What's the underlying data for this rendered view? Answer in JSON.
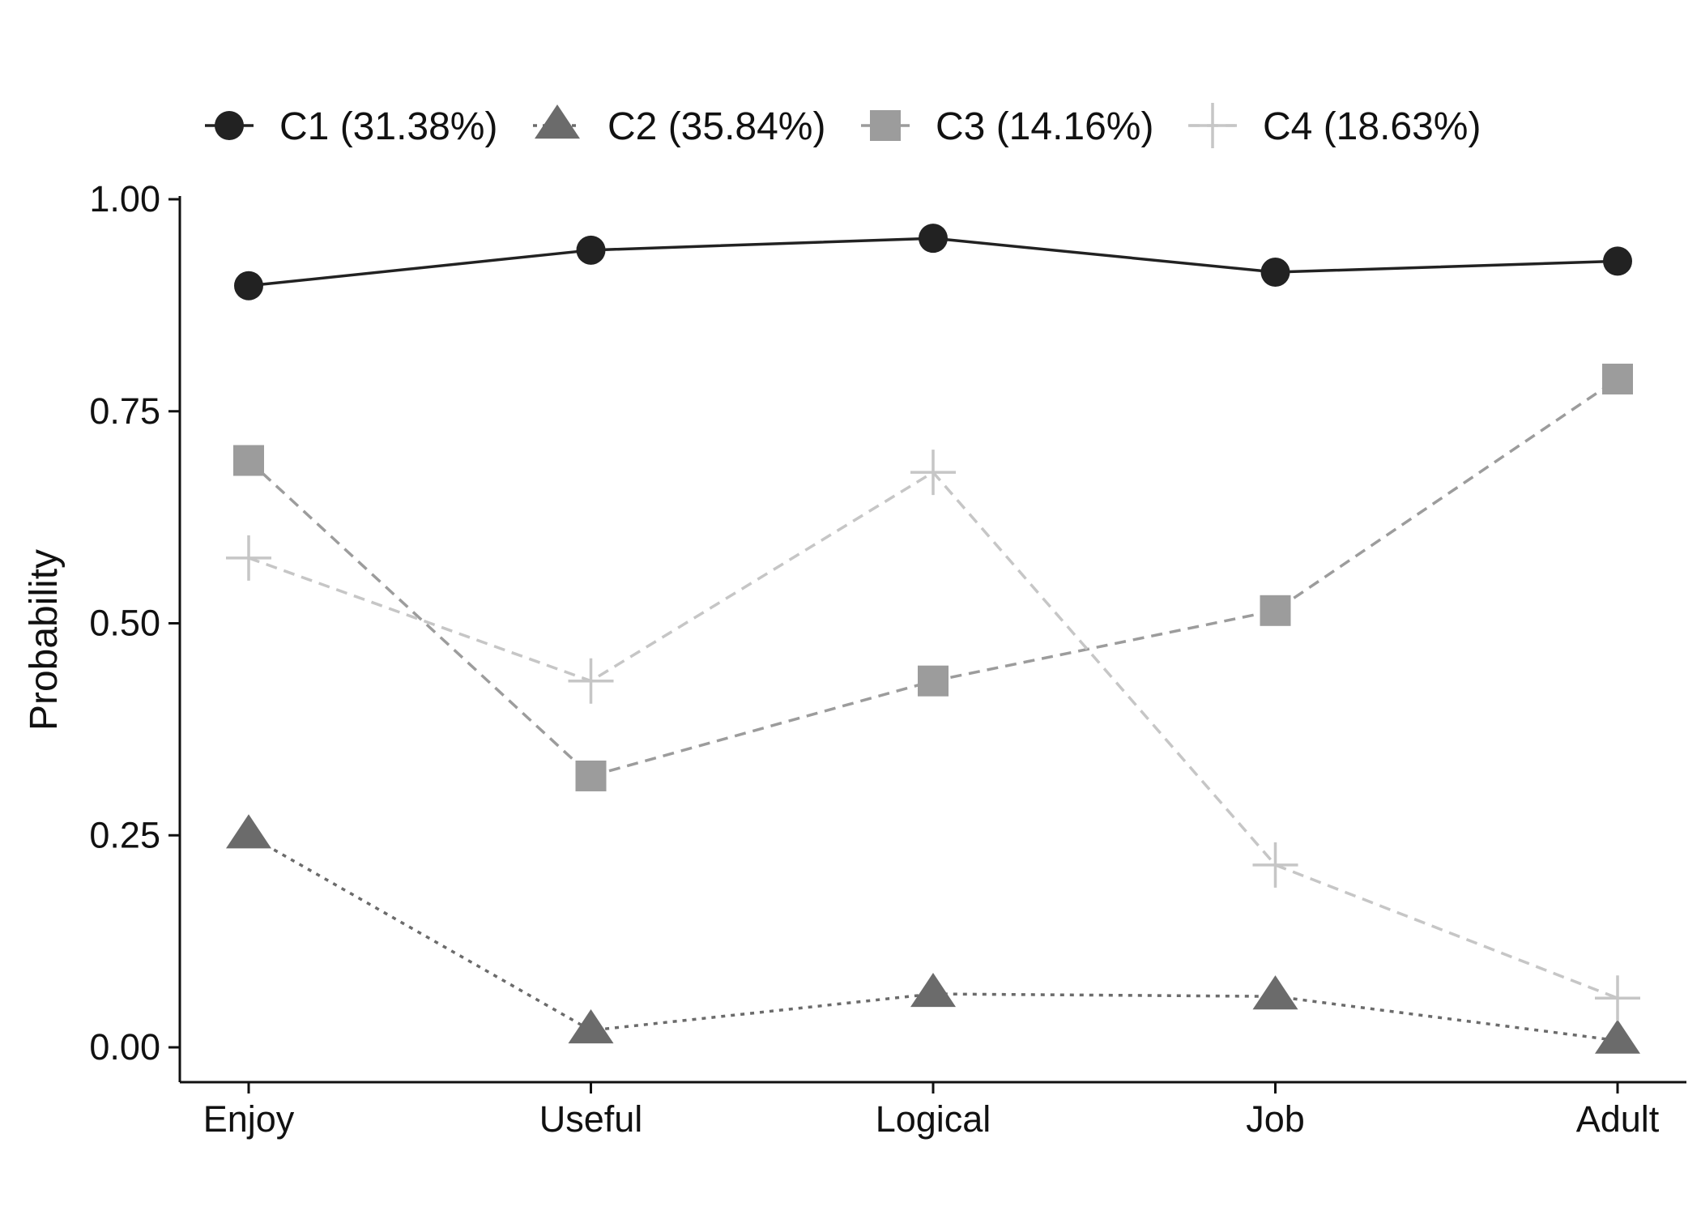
{
  "chart_data": {
    "type": "line",
    "title": "",
    "xlabel": "",
    "ylabel": "Probability",
    "categories": [
      "Enjoy",
      "Useful",
      "Logical",
      "Job",
      "Adult"
    ],
    "ylim": [
      0,
      1
    ],
    "yticks": [
      "0.00",
      "0.25",
      "0.50",
      "0.75",
      "1.00"
    ],
    "yticks_values": [
      0,
      0.25,
      0.5,
      0.75,
      1.0
    ],
    "grid": false,
    "legend_position": "top",
    "series": [
      {
        "name": "C1 (31.38%)",
        "marker": "circle",
        "line_style": "solid",
        "color": "#222222",
        "values": [
          0.898,
          0.94,
          0.954,
          0.914,
          0.927
        ]
      },
      {
        "name": "C2 (35.84%)",
        "marker": "triangle",
        "line_style": "dotted",
        "color": "#6b6b6b",
        "values": [
          0.25,
          0.02,
          0.063,
          0.06,
          0.008
        ]
      },
      {
        "name": "C3 (14.16%)",
        "marker": "square",
        "line_style": "dashed",
        "color": "#9c9c9c",
        "values": [
          0.692,
          0.32,
          0.432,
          0.515,
          0.788
        ]
      },
      {
        "name": "C4 (18.63%)",
        "marker": "plus",
        "line_style": "dashed",
        "color": "#c6c6c6",
        "values": [
          0.577,
          0.432,
          0.678,
          0.215,
          0.058
        ]
      }
    ]
  }
}
